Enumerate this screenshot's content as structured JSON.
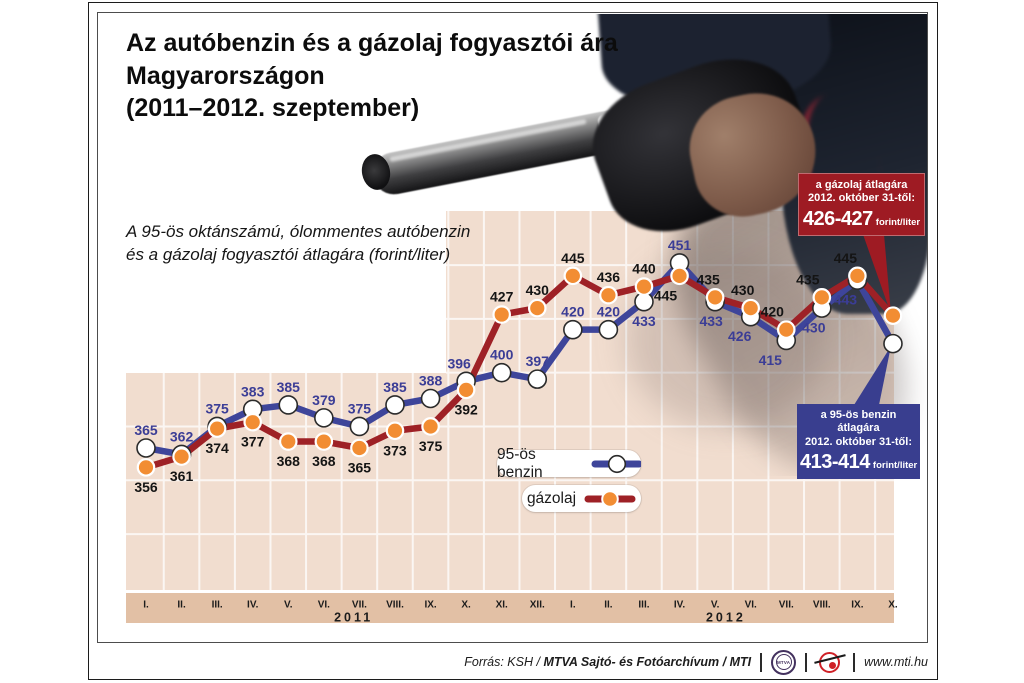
{
  "title_lines": [
    "Az autóbenzin és a gázolaj fogyasztói ára",
    "Magyarországon",
    "(2011–2012. szeptember)"
  ],
  "subtitle_lines": [
    "A 95-ös oktánszámú, ólommentes autóbenzin",
    "és a gázolaj fogyasztói átlagára (forint/liter)"
  ],
  "chart_data": {
    "type": "line",
    "unit": "forint/liter",
    "x_groups": [
      {
        "year": "2011",
        "months": [
          "I.",
          "II.",
          "III.",
          "IV.",
          "V.",
          "VI.",
          "VII.",
          "VIII.",
          "IX.",
          "X.",
          "XI.",
          "XII."
        ]
      },
      {
        "year": "2012",
        "months": [
          "I.",
          "II.",
          "III.",
          "IV.",
          "V.",
          "VI.",
          "VII.",
          "VIII.",
          "IX.",
          "X."
        ]
      }
    ],
    "gridline_values": [
      325,
      350,
      375,
      400,
      425,
      450
    ],
    "grid": "on",
    "legend_position": "inside-middle",
    "series": [
      {
        "name": "95-ös benzin",
        "marker": "white-circle",
        "values": [
          365,
          362,
          375,
          383,
          385,
          379,
          375,
          385,
          388,
          396,
          400,
          397,
          420,
          420,
          433,
          451,
          433,
          426,
          415,
          430,
          443,
          null
        ],
        "label_side": [
          "a",
          "a",
          "a",
          "a",
          "a",
          "a",
          "a",
          "a",
          "a",
          "a",
          "a",
          "a",
          "a",
          "a",
          "b",
          "a",
          "b",
          "b",
          "b",
          "b",
          "b",
          ""
        ],
        "final_estimate": 413.5
      },
      {
        "name": "gázolaj",
        "marker": "orange-circle",
        "values": [
          356,
          361,
          374,
          377,
          368,
          368,
          365,
          373,
          375,
          392,
          427,
          430,
          445,
          436,
          440,
          445,
          435,
          430,
          420,
          435,
          445,
          null
        ],
        "label_side": [
          "b",
          "b",
          "b",
          "b",
          "b",
          "b",
          "b",
          "b",
          "b",
          "b",
          "a",
          "a",
          "a",
          "a",
          "a",
          "b",
          "a",
          "a",
          "a",
          "a",
          "a",
          ""
        ],
        "final_estimate": 426.5
      }
    ]
  },
  "legend": {
    "petrol": "95-ös benzin",
    "diesel": "gázolaj"
  },
  "callouts": {
    "diesel": {
      "line1": "a gázolaj átlagára",
      "line2": "2012. október 31-től:",
      "value": "426-427",
      "unit": "forint/liter"
    },
    "petrol": {
      "line1": "a 95-ös benzin átlagára",
      "line2": "2012. október 31-től:",
      "value": "413-414",
      "unit": "forint/liter"
    }
  },
  "footer": {
    "source_regular": "Forrás: KSH / ",
    "source_bold": "MTVA Sajtó- és Fotóarchívum / MTI",
    "mtva_logo_text": "MTVA",
    "website": "www.mti.hu"
  },
  "colors": {
    "plot_bg": "#f1ddcf",
    "axis_strip": "#e2c0a5",
    "gridline": "#ffffff",
    "benzin_line": "#3e459a",
    "benzin_label": "#3b3d96",
    "gazolaj_line": "#9e2126",
    "gazolaj_label": "#141414",
    "orange_marker": "#f28d33",
    "callout_diesel_bg": "#9e1b23",
    "callout_petrol_bg": "#393e8f"
  }
}
